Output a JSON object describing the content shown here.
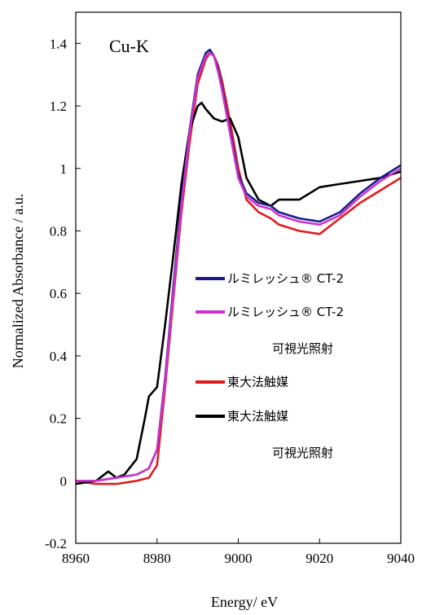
{
  "chart_data": {
    "type": "line",
    "title": "",
    "annotation": "Cu-K",
    "xlabel": "Energy/ eV",
    "ylabel": "Normalized Absorbance / a.u.",
    "xlim": [
      8960,
      9040
    ],
    "ylim": [
      -0.2,
      1.5
    ],
    "xticks": [
      8960,
      8980,
      9000,
      9020,
      9040
    ],
    "yticks": [
      -0.2,
      0,
      0.2,
      0.4,
      0.6,
      0.8,
      1,
      1.2,
      1.4
    ],
    "xtick_labels": [
      "8960",
      "8980",
      "9000",
      "9020",
      "9040"
    ],
    "ytick_labels": [
      "-0.2",
      "0",
      "0.2",
      "0.4",
      "0.6",
      "0.8",
      "1",
      "1.2",
      "1.4"
    ],
    "grid": false,
    "legend_position": "center-right",
    "series": [
      {
        "name": "ルミレッシュ® CT-2",
        "subname": "",
        "color": "#1a1a8c",
        "x": [
          8960,
          8965,
          8970,
          8975,
          8978,
          8980,
          8982,
          8984,
          8986,
          8988,
          8990,
          8992,
          8993,
          8994,
          8995,
          8996,
          8998,
          9000,
          9002,
          9005,
          9008,
          9010,
          9015,
          9020,
          9025,
          9030,
          9035,
          9040
        ],
        "y": [
          0.0,
          0.0,
          0.01,
          0.02,
          0.04,
          0.1,
          0.33,
          0.62,
          0.9,
          1.12,
          1.3,
          1.37,
          1.38,
          1.36,
          1.32,
          1.26,
          1.12,
          0.98,
          0.92,
          0.89,
          0.88,
          0.86,
          0.84,
          0.83,
          0.86,
          0.92,
          0.97,
          1.01
        ]
      },
      {
        "name": "ルミレッシュ® CT-2",
        "subname": "可視光照射",
        "color": "#cc33cc",
        "x": [
          8960,
          8965,
          8970,
          8975,
          8978,
          8980,
          8982,
          8984,
          8986,
          8988,
          8990,
          8992,
          8993,
          8994,
          8995,
          8996,
          8998,
          9000,
          9002,
          9005,
          9008,
          9010,
          9015,
          9020,
          9025,
          9030,
          9035,
          9040
        ],
        "y": [
          0.0,
          0.0,
          0.01,
          0.02,
          0.04,
          0.1,
          0.32,
          0.6,
          0.88,
          1.11,
          1.29,
          1.36,
          1.37,
          1.36,
          1.31,
          1.25,
          1.11,
          0.97,
          0.91,
          0.88,
          0.87,
          0.85,
          0.83,
          0.82,
          0.85,
          0.91,
          0.96,
          1.0
        ]
      },
      {
        "name": "東大法触媒",
        "subname": "",
        "color": "#e01b1b",
        "x": [
          8960,
          8965,
          8970,
          8975,
          8978,
          8980,
          8982,
          8984,
          8986,
          8988,
          8990,
          8992,
          8993,
          8994,
          8995,
          8996,
          8998,
          9000,
          9002,
          9005,
          9008,
          9010,
          9015,
          9020,
          9025,
          9030,
          9035,
          9040
        ],
        "y": [
          0.0,
          -0.01,
          -0.01,
          0.0,
          0.01,
          0.05,
          0.3,
          0.58,
          0.86,
          1.08,
          1.27,
          1.35,
          1.37,
          1.36,
          1.33,
          1.28,
          1.15,
          1.0,
          0.9,
          0.86,
          0.84,
          0.82,
          0.8,
          0.79,
          0.84,
          0.89,
          0.93,
          0.97
        ]
      },
      {
        "name": "東大法触媒",
        "subname": "可視光照射",
        "color": "#000000",
        "x": [
          8960,
          8965,
          8968,
          8970,
          8972,
          8975,
          8977,
          8978,
          8980,
          8982,
          8984,
          8986,
          8988,
          8990,
          8991,
          8992,
          8994,
          8996,
          8998,
          9000,
          9002,
          9005,
          9008,
          9010,
          9015,
          9020,
          9025,
          9030,
          9035,
          9040
        ],
        "y": [
          -0.01,
          0.0,
          0.03,
          0.01,
          0.02,
          0.07,
          0.2,
          0.27,
          0.3,
          0.5,
          0.72,
          0.95,
          1.12,
          1.2,
          1.21,
          1.19,
          1.16,
          1.15,
          1.16,
          1.1,
          0.97,
          0.9,
          0.88,
          0.9,
          0.9,
          0.94,
          0.95,
          0.96,
          0.97,
          0.99
        ]
      }
    ]
  }
}
